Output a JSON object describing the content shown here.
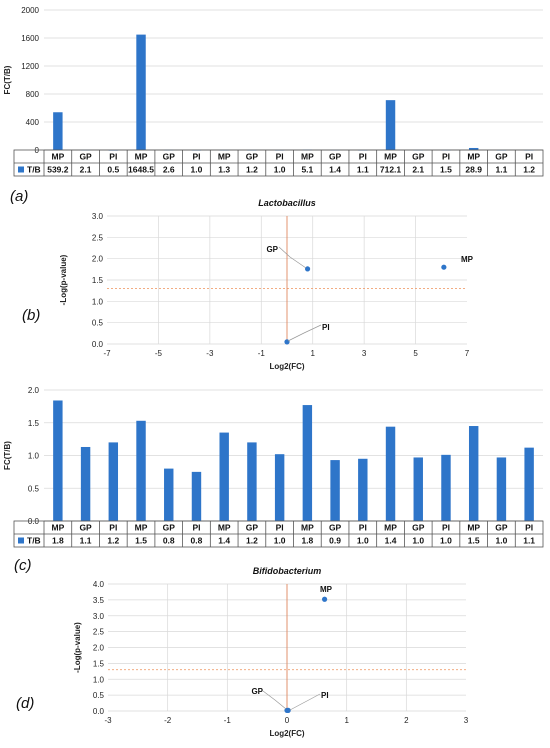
{
  "colors": {
    "bar": "#2e75c9",
    "point": "#2e75c9",
    "grid": "#d9d9d9",
    "threshold": "#f0a070",
    "zero_line": "#e08860"
  },
  "panels": {
    "a": "(a)",
    "b": "(b)",
    "c": "(c)",
    "d": "(d)"
  },
  "chart_data": [
    {
      "id": "a",
      "type": "bar",
      "title": "",
      "ylabel": "FC(T/B)",
      "ylim": [
        0,
        2000
      ],
      "yticks": [
        0,
        400,
        800,
        1200,
        1600,
        2000
      ],
      "grid": true,
      "legend": "data-table",
      "categories": [
        "MP",
        "GP",
        "PI",
        "MP",
        "GP",
        "PI",
        "MP",
        "GP",
        "PI",
        "MP",
        "GP",
        "PI",
        "MP",
        "GP",
        "PI",
        "MP",
        "GP",
        "PI"
      ],
      "series": [
        {
          "name": "T/B",
          "values": [
            539.2,
            2.1,
            0.5,
            1648.5,
            2.6,
            1.0,
            1.3,
            1.2,
            1.0,
            5.1,
            1.4,
            1.1,
            712.1,
            2.1,
            1.5,
            28.9,
            1.1,
            1.2
          ],
          "labels": [
            "539.2",
            "2.1",
            "0.5",
            "1648.5",
            "2.6",
            "1.0",
            "1.3",
            "1.2",
            "1.0",
            "5.1",
            "1.4",
            "1.1",
            "712.1",
            "2.1",
            "1.5",
            "28.9",
            "1.1",
            "1.2"
          ]
        }
      ]
    },
    {
      "id": "b",
      "type": "scatter",
      "title": "Lactobacillus",
      "xlabel": "Log2(FC)",
      "ylabel": "-Log(p-value)",
      "xlim": [
        -7,
        7
      ],
      "ylim": [
        0,
        3
      ],
      "xticks": [
        -7,
        -5,
        -3,
        -1,
        1,
        3,
        5,
        7
      ],
      "yticks": [
        "0.0",
        "0.5",
        "1.0",
        "1.5",
        "2.0",
        "2.5",
        "3.0"
      ],
      "grid": true,
      "threshold_y": 1.3,
      "points": [
        {
          "label": "GP",
          "x": 0.8,
          "y": 1.76
        },
        {
          "label": "MP",
          "x": 6.1,
          "y": 1.8
        },
        {
          "label": "PI",
          "x": 0.0,
          "y": 0.05
        }
      ]
    },
    {
      "id": "c",
      "type": "bar",
      "title": "",
      "ylabel": "FC(T/B)",
      "ylim": [
        0,
        2
      ],
      "yticks": [
        "0.0",
        "0.5",
        "1.0",
        "1.5",
        "2.0"
      ],
      "grid": true,
      "legend": "data-table",
      "categories": [
        "MP",
        "GP",
        "PI",
        "MP",
        "GP",
        "PI",
        "MP",
        "GP",
        "PI",
        "MP",
        "GP",
        "PI",
        "MP",
        "GP",
        "PI",
        "MP",
        "GP",
        "PI"
      ],
      "series": [
        {
          "name": "T/B",
          "values": [
            1.84,
            1.13,
            1.2,
            1.53,
            0.8,
            0.75,
            1.35,
            1.2,
            1.02,
            1.77,
            0.93,
            0.95,
            1.44,
            0.97,
            1.01,
            1.45,
            0.97,
            1.12
          ],
          "labels": [
            "1.8",
            "1.1",
            "1.2",
            "1.5",
            "0.8",
            "0.8",
            "1.4",
            "1.2",
            "1.0",
            "1.8",
            "0.9",
            "1.0",
            "1.4",
            "1.0",
            "1.0",
            "1.5",
            "1.0",
            "1.1"
          ]
        }
      ]
    },
    {
      "id": "d",
      "type": "scatter",
      "title": "Bifidobacterium",
      "xlabel": "Log2(FC)",
      "ylabel": "-Log(p-value)",
      "xlim": [
        -3,
        3
      ],
      "ylim": [
        0,
        4
      ],
      "xticks": [
        -3,
        -2,
        -1,
        0,
        1,
        2,
        3
      ],
      "yticks": [
        "0.0",
        "0.5",
        "1.0",
        "1.5",
        "2.0",
        "2.5",
        "3.0",
        "3.5",
        "4.0"
      ],
      "grid": true,
      "threshold_y": 1.3,
      "points": [
        {
          "label": "MP",
          "x": 0.63,
          "y": 3.52
        },
        {
          "label": "GP",
          "x": 0.0,
          "y": 0.02
        },
        {
          "label": "PI",
          "x": 0.02,
          "y": 0.02
        }
      ]
    }
  ]
}
